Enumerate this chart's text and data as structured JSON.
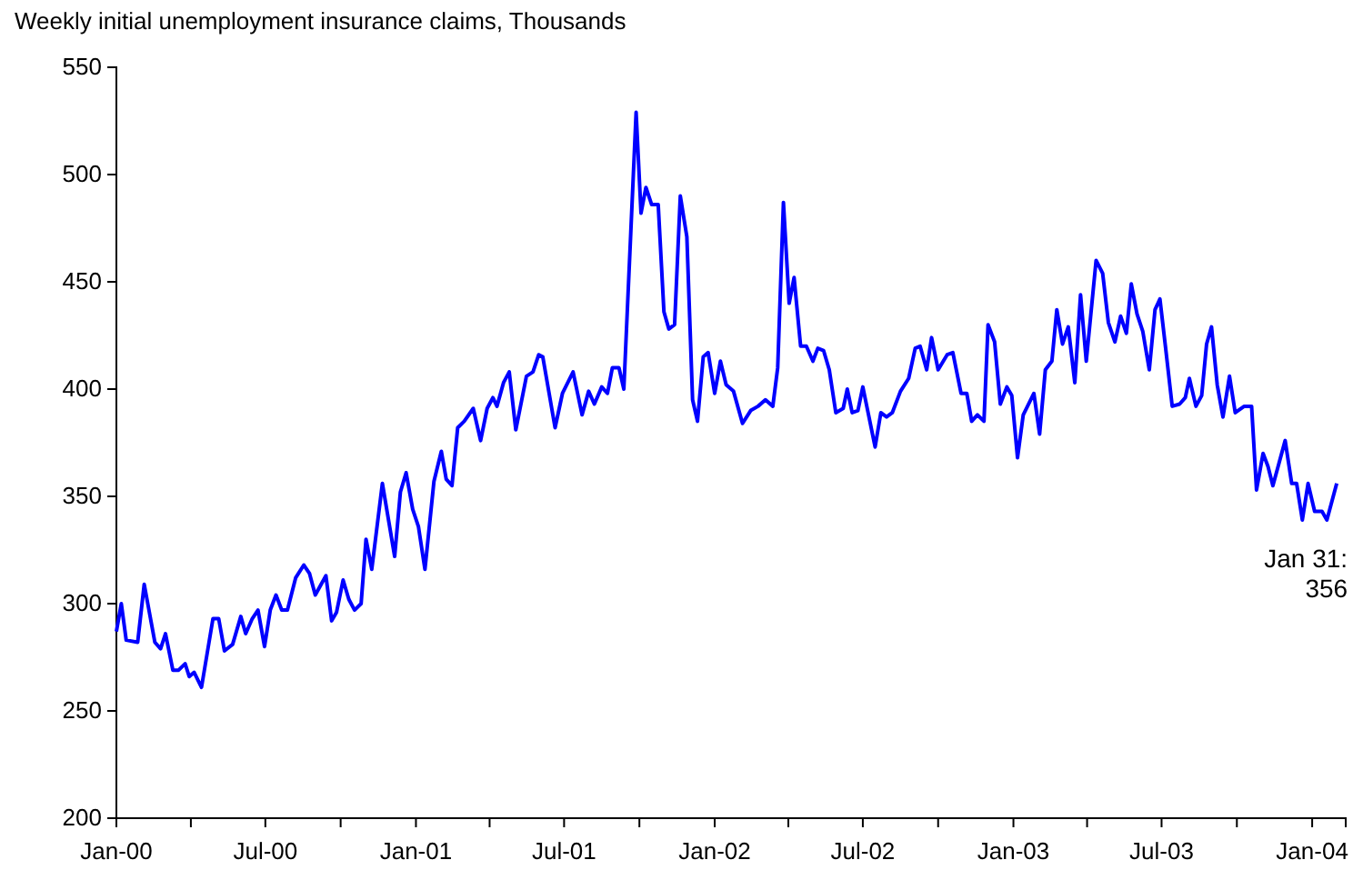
{
  "chart_data": {
    "type": "line",
    "title": "Weekly initial unemployment insurance claims, Thousands",
    "x": [
      "2000-01-01",
      "2000-01-07",
      "2000-01-13",
      "2000-01-27",
      "2000-02-04",
      "2000-02-17",
      "2000-02-24",
      "2000-03-01",
      "2000-03-10",
      "2000-03-17",
      "2000-03-25",
      "2000-03-30",
      "2000-04-05",
      "2000-04-14",
      "2000-04-28",
      "2000-05-05",
      "2000-05-12",
      "2000-05-22",
      "2000-06-01",
      "2000-06-07",
      "2000-06-15",
      "2000-06-22",
      "2000-06-30",
      "2000-07-07",
      "2000-07-14",
      "2000-07-21",
      "2000-07-28",
      "2000-08-07",
      "2000-08-17",
      "2000-08-24",
      "2000-08-31",
      "2000-09-13",
      "2000-09-20",
      "2000-09-26",
      "2000-10-04",
      "2000-10-11",
      "2000-10-18",
      "2000-10-26",
      "2000-11-01",
      "2000-11-08",
      "2000-11-21",
      "2000-12-06",
      "2000-12-13",
      "2000-12-20",
      "2000-12-28",
      "2001-01-04",
      "2001-01-12",
      "2001-01-23",
      "2001-02-01",
      "2001-02-07",
      "2001-02-14",
      "2001-02-21",
      "2001-03-01",
      "2001-03-12",
      "2001-03-21",
      "2001-03-29",
      "2001-04-05",
      "2001-04-10",
      "2001-04-18",
      "2001-04-25",
      "2001-05-03",
      "2001-05-16",
      "2001-05-24",
      "2001-05-31",
      "2001-06-05",
      "2001-06-20",
      "2001-06-29",
      "2001-07-12",
      "2001-07-23",
      "2001-07-31",
      "2001-08-07",
      "2001-08-16",
      "2001-08-23",
      "2001-08-29",
      "2001-09-06",
      "2001-09-12",
      "2001-09-27",
      "2001-10-03",
      "2001-10-09",
      "2001-10-16",
      "2001-10-24",
      "2001-10-31",
      "2001-11-06",
      "2001-11-13",
      "2001-11-20",
      "2001-11-28",
      "2001-12-05",
      "2001-12-11",
      "2001-12-18",
      "2001-12-24",
      "2002-01-01",
      "2002-01-08",
      "2002-01-15",
      "2002-01-24",
      "2002-02-04",
      "2002-02-14",
      "2002-02-23",
      "2002-03-04",
      "2002-03-13",
      "2002-03-19",
      "2002-03-26",
      "2002-04-02",
      "2002-04-08",
      "2002-04-16",
      "2002-04-23",
      "2002-05-01",
      "2002-05-07",
      "2002-05-14",
      "2002-05-21",
      "2002-05-29",
      "2002-06-07",
      "2002-06-12",
      "2002-06-18",
      "2002-06-25",
      "2002-07-01",
      "2002-07-16",
      "2002-07-23",
      "2002-07-30",
      "2002-08-06",
      "2002-08-16",
      "2002-08-26",
      "2002-09-03",
      "2002-09-09",
      "2002-09-17",
      "2002-09-23",
      "2002-10-01",
      "2002-10-12",
      "2002-10-19",
      "2002-10-29",
      "2002-11-05",
      "2002-11-11",
      "2002-11-18",
      "2002-11-26",
      "2002-12-01",
      "2002-12-09",
      "2002-12-16",
      "2002-12-24",
      "2002-12-30",
      "2003-01-06",
      "2003-01-13",
      "2003-01-26",
      "2003-02-02",
      "2003-02-09",
      "2003-02-17",
      "2003-02-23",
      "2003-03-02",
      "2003-03-09",
      "2003-03-17",
      "2003-03-24",
      "2003-03-31",
      "2003-04-12",
      "2003-04-20",
      "2003-04-27",
      "2003-05-05",
      "2003-05-12",
      "2003-05-19",
      "2003-05-25",
      "2003-06-01",
      "2003-06-08",
      "2003-06-16",
      "2003-06-23",
      "2003-06-29",
      "2003-07-06",
      "2003-07-14",
      "2003-07-23",
      "2003-07-30",
      "2003-08-04",
      "2003-08-12",
      "2003-08-19",
      "2003-08-25",
      "2003-08-31",
      "2003-09-07",
      "2003-09-14",
      "2003-09-22",
      "2003-09-29",
      "2003-10-10",
      "2003-10-19",
      "2003-10-25",
      "2003-11-02",
      "2003-11-08",
      "2003-11-14",
      "2003-11-29",
      "2003-12-07",
      "2003-12-13",
      "2003-12-20",
      "2003-12-27",
      "2004-01-04",
      "2004-01-13",
      "2004-01-19",
      "2004-01-31"
    ],
    "series": [
      {
        "color": "#0000ff",
        "values": [
          287,
          300,
          283,
          282,
          309,
          282,
          279,
          286,
          269,
          269,
          272,
          266,
          268,
          261,
          293,
          293,
          278,
          281,
          294,
          286,
          293,
          297,
          280,
          297,
          304,
          297,
          297,
          312,
          318,
          314,
          304,
          313,
          292,
          296,
          311,
          302,
          297,
          300,
          330,
          316,
          356,
          322,
          352,
          361,
          344,
          336,
          316,
          357,
          371,
          358,
          355,
          382,
          385,
          391,
          376,
          391,
          396,
          392,
          403,
          408,
          381,
          406,
          408,
          416,
          415,
          382,
          398,
          408,
          388,
          399,
          393,
          401,
          398,
          410,
          410,
          400,
          529,
          482,
          494,
          486,
          486,
          436,
          428,
          430,
          490,
          471,
          395,
          385,
          415,
          417,
          398,
          413,
          402,
          399,
          384,
          390,
          392,
          395,
          392,
          410,
          487,
          440,
          452,
          420,
          420,
          413,
          419,
          418,
          409,
          389,
          391,
          400,
          389,
          390,
          401,
          373,
          389,
          387,
          389,
          399,
          405,
          419,
          420,
          409,
          424,
          409,
          416,
          417,
          398,
          398,
          385,
          388,
          385,
          430,
          422,
          393,
          401,
          397,
          368,
          388,
          398,
          379,
          409,
          413,
          437,
          421,
          429,
          403,
          444,
          413,
          460,
          454,
          431,
          422,
          434,
          426,
          449,
          435,
          427,
          409,
          437,
          442,
          419,
          392,
          393,
          396,
          405,
          392,
          397,
          421,
          429,
          402,
          387,
          406,
          389,
          392,
          392,
          353,
          370,
          364,
          355,
          376,
          356,
          356,
          339,
          356,
          343,
          343,
          339,
          356
        ]
      }
    ],
    "xlim": [
      "2000-01-01",
      "2004-02-11"
    ],
    "xticks": [
      {
        "value": "2000-01-01",
        "label": "Jan-00"
      },
      {
        "value": "2000-04-01",
        "label": null
      },
      {
        "value": "2000-07-01",
        "label": "Jul-00"
      },
      {
        "value": "2000-10-01",
        "label": null
      },
      {
        "value": "2001-01-01",
        "label": "Jan-01"
      },
      {
        "value": "2001-04-01",
        "label": null
      },
      {
        "value": "2001-07-01",
        "label": "Jul-01"
      },
      {
        "value": "2001-10-01",
        "label": null
      },
      {
        "value": "2002-01-01",
        "label": "Jan-02"
      },
      {
        "value": "2002-04-01",
        "label": null
      },
      {
        "value": "2002-07-01",
        "label": "Jul-02"
      },
      {
        "value": "2002-10-01",
        "label": null
      },
      {
        "value": "2003-01-01",
        "label": "Jan-03"
      },
      {
        "value": "2003-04-01",
        "label": null
      },
      {
        "value": "2003-07-01",
        "label": "Jul-03"
      },
      {
        "value": "2003-10-01",
        "label": null
      },
      {
        "value": "2004-01-01",
        "label": "Jan-04"
      }
    ],
    "ylim": [
      200,
      550
    ],
    "yticks": [
      200,
      250,
      300,
      350,
      400,
      450,
      500,
      550
    ],
    "annotations": [
      {
        "text": "Jan 31:\n356",
        "x": "2004-01-31",
        "y": 356
      }
    ],
    "grid": false,
    "marker": "none",
    "line_style": "solid"
  }
}
